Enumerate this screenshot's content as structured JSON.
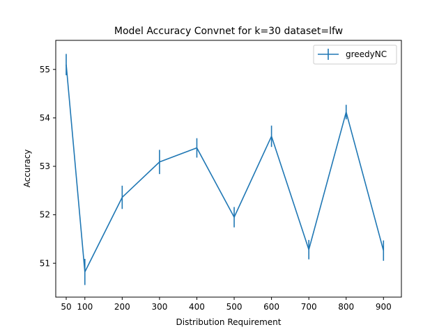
{
  "chart_data": {
    "type": "line",
    "title": "Model Accuracy Convnet for k=30 dataset=lfw",
    "xlabel": "Distribution Requirement",
    "ylabel": "Accuracy",
    "xlim": [
      22,
      948
    ],
    "ylim": [
      50.3,
      55.6
    ],
    "xticks": [
      50,
      100,
      200,
      300,
      400,
      500,
      600,
      700,
      800,
      900
    ],
    "yticks": [
      51,
      52,
      53,
      54,
      55
    ],
    "legend_position": "upper-right",
    "grid": false,
    "series": [
      {
        "name": "greedyNC",
        "color": "#1f77b4",
        "x": [
          50,
          100,
          200,
          300,
          400,
          500,
          600,
          700,
          800,
          900
        ],
        "y": [
          55.1,
          50.82,
          52.36,
          53.09,
          53.38,
          51.95,
          53.62,
          51.28,
          54.12,
          51.26
        ],
        "yerr": [
          0.22,
          0.27,
          0.24,
          0.25,
          0.2,
          0.21,
          0.22,
          0.2,
          0.15,
          0.21
        ]
      }
    ]
  }
}
